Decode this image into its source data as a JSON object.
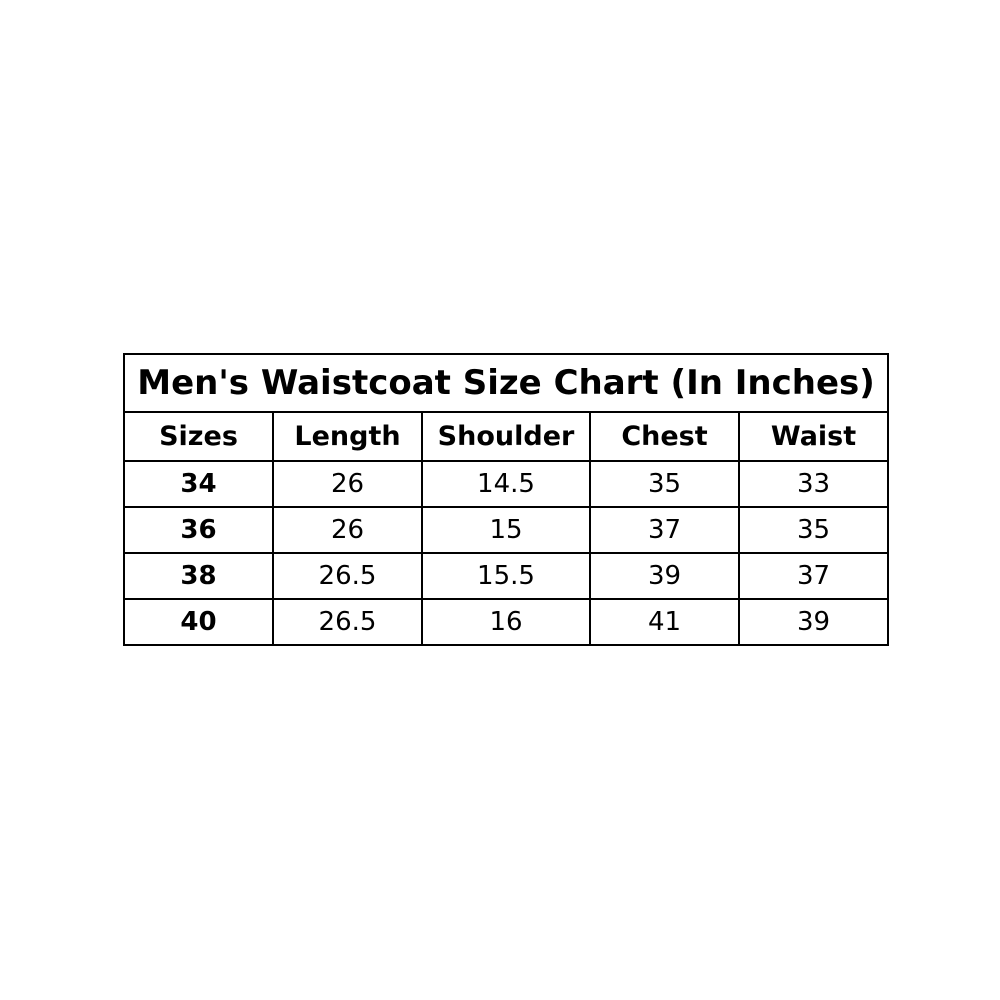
{
  "title": "Men's Waistcoat Size Chart (In Inches)",
  "columns": [
    "Sizes",
    "Length",
    "Shoulder",
    "Chest",
    "Waist"
  ],
  "rows": [
    [
      "34",
      "26",
      "14.5",
      "35",
      "33"
    ],
    [
      "36",
      "26",
      "15",
      "37",
      "35"
    ],
    [
      "38",
      "26.5",
      "15.5",
      "39",
      "37"
    ],
    [
      "40",
      "26.5",
      "16",
      "41",
      "39"
    ]
  ]
}
